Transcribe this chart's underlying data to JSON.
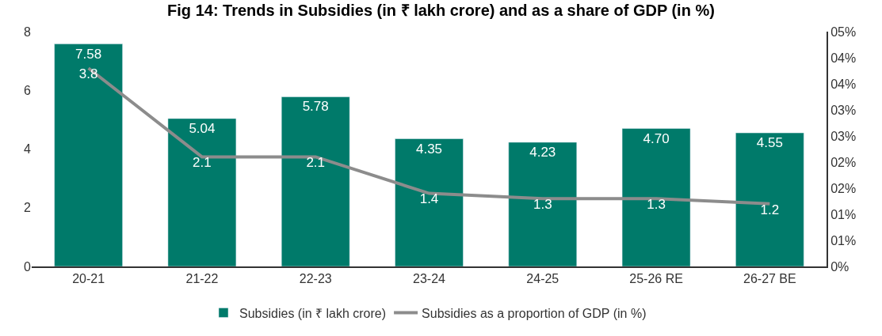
{
  "chart_data": {
    "type": "bar",
    "title": "Fig 14: Trends in Subsidies (in ₹ lakh crore) and as a share of GDP (in %)",
    "categories": [
      "20-21",
      "21-22",
      "22-23",
      "23-24",
      "24-25",
      "25-26 RE",
      "26-27 BE"
    ],
    "series": [
      {
        "name": "Subsidies (in ₹ lakh crore)",
        "color": "#007a6a",
        "values": [
          7.58,
          5.04,
          5.78,
          4.35,
          4.23,
          4.7,
          4.55
        ],
        "value_labels": [
          "7.58",
          "5.04",
          "5.78",
          "4.35",
          "4.23",
          "4.70",
          "4.55"
        ]
      },
      {
        "name": "Subsidies as a proportion of GDP (in %)",
        "type": "line",
        "axis": "y2",
        "color": "#8c8c8c",
        "marker": "none",
        "values": [
          3.8,
          2.1,
          2.1,
          1.4,
          1.3,
          1.3,
          1.2
        ],
        "value_labels": [
          "3.8",
          "2.1",
          "2.1",
          "1.4",
          "1.3",
          "1.3",
          "1.2"
        ]
      }
    ],
    "ylim": [
      0,
      8
    ],
    "yticks": [
      0,
      2,
      4,
      6,
      8
    ],
    "y2lim": [
      0,
      4.5
    ],
    "y2ticks": [
      {
        "value": 0,
        "label": "0%"
      },
      {
        "value": 0.5,
        "label": "01%"
      },
      {
        "value": 1,
        "label": "01%"
      },
      {
        "value": 1.5,
        "label": "02%"
      },
      {
        "value": 2,
        "label": "02%"
      },
      {
        "value": 2.5,
        "label": "03%"
      },
      {
        "value": 3,
        "label": "03%"
      },
      {
        "value": 3.5,
        "label": "04%"
      },
      {
        "value": 4,
        "label": "04%"
      },
      {
        "value": 4.5,
        "label": "05%"
      }
    ],
    "legend": "bottom"
  }
}
